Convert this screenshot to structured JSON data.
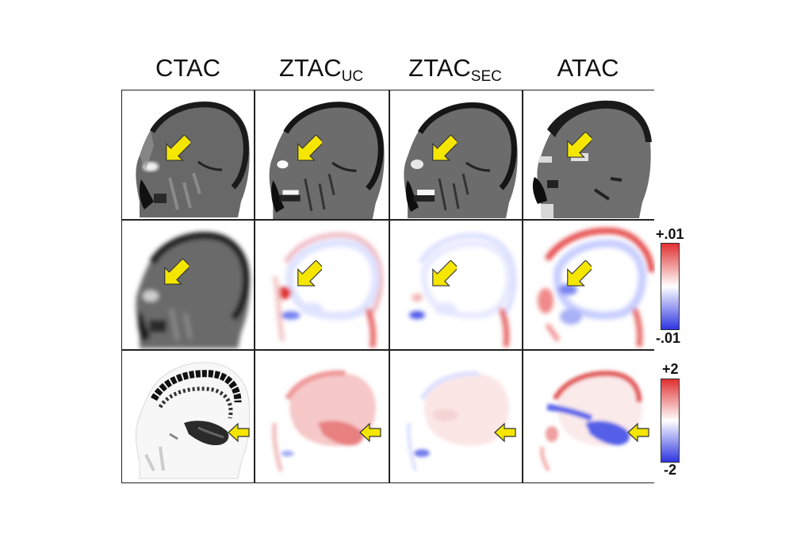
{
  "columns": [
    {
      "base": "CTAC",
      "sub": ""
    },
    {
      "base": "ZTAC",
      "sub": "UC"
    },
    {
      "base": "ZTAC",
      "sub": "SEC"
    },
    {
      "base": "ATAC",
      "sub": ""
    }
  ],
  "colorbars": [
    {
      "top_label": "+.01",
      "bottom_label": "-.01",
      "top_color": "#e03030",
      "mid_color": "#ffffff",
      "bottom_color": "#2e35e0"
    },
    {
      "top_label": "+2",
      "bottom_label": "-2",
      "top_color": "#e03030",
      "mid_color": "#ffffff",
      "bottom_color": "#2e35e0"
    }
  ],
  "rows": [
    {
      "name": "attenuation-maps",
      "colormap": "grayscale"
    },
    {
      "name": "attenuation-difference-maps",
      "colormap": "diverging red-white-blue"
    },
    {
      "name": "pet-difference-maps",
      "colormap": "diverging red-white-blue"
    }
  ],
  "arrow_color": "#f5e600"
}
